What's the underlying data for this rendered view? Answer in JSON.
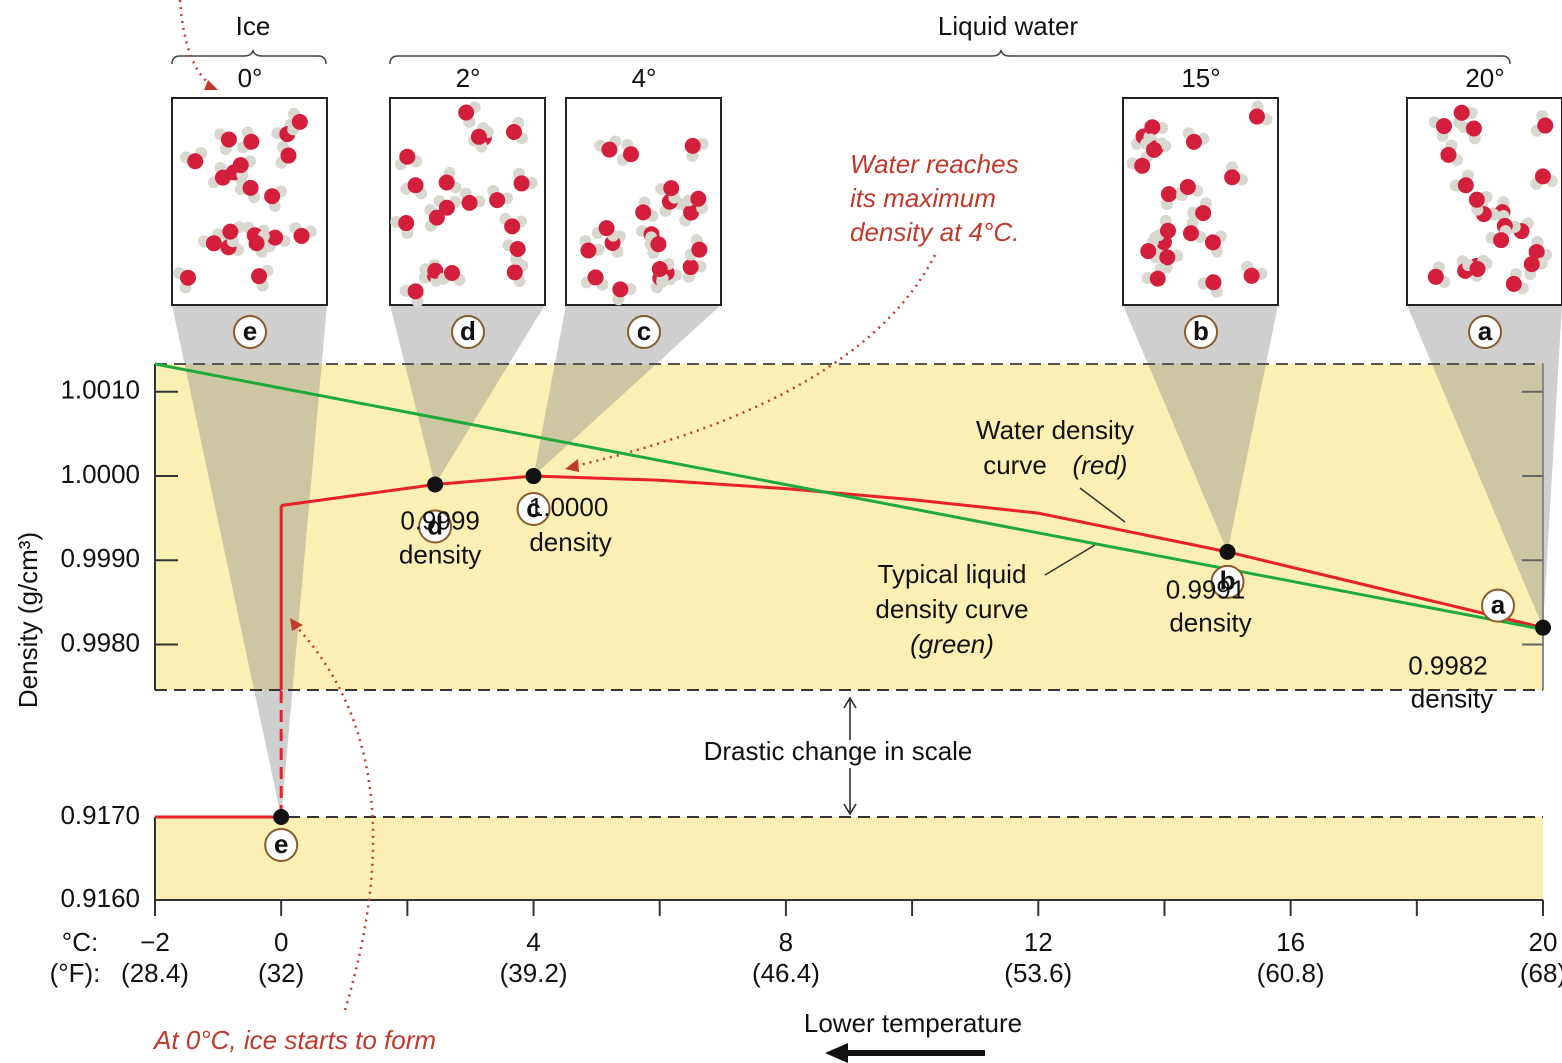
{
  "chart_data": [
    {
      "type": "line",
      "ylabel": "Density (g/cm³)",
      "xlabel": "Lower temperature",
      "x_unit_c": "°C:",
      "x_unit_f": "(°F):",
      "xlim": [
        -2,
        20
      ],
      "xticks": [
        {
          "value": -2,
          "label": "−2"
        },
        0,
        4,
        8,
        12,
        16,
        20
      ],
      "xticks_f": [
        "(28.4)",
        "(32)",
        "(39.2)",
        "(46.4)",
        "(53.6)",
        "(60.8)",
        "(68)"
      ],
      "xminor": [
        2,
        6,
        10,
        14,
        18
      ],
      "ylim": [
        0.99746,
        1.00133
      ],
      "yticks": [
        {
          "value": 1.001,
          "label": "1.0010"
        },
        {
          "value": 1,
          "label": "1.0000"
        },
        {
          "value": 0.999,
          "label": "0.9990"
        },
        {
          "value": 0.998,
          "label": "0.9980"
        }
      ],
      "series": [
        {
          "label_lines": [
            "Water density",
            "curve"
          ],
          "label_note": "(red)",
          "color": "#e8202a",
          "x": [
            0,
            2.44,
            4,
            6,
            8,
            10,
            12,
            15,
            17.5,
            20
          ],
          "values": [
            0.99965,
            0.9999,
            1.0,
            0.99995,
            0.99985,
            0.99972,
            0.99956,
            0.9991,
            0.99865,
            0.9982
          ]
        },
        {
          "label_lines": [
            "Typical liquid",
            "density curve"
          ],
          "label_note": "(green)",
          "color": "#1faa3c",
          "x": [
            -2,
            20
          ],
          "values": [
            1.00133,
            0.99818
          ]
        }
      ],
      "points": {
        "letters": [
          "d",
          "c",
          "b",
          "a"
        ],
        "x": [
          2.44,
          4,
          15,
          20
        ],
        "values": [
          0.9999,
          1.0,
          0.9991,
          0.9982
        ],
        "value_labels": [
          "0.9999",
          "1.0000",
          "0.9991",
          "0.9982"
        ],
        "value_unit": "density"
      },
      "annotation_max": [
        "Water reaches",
        "its maximum",
        "density at 4°C."
      ],
      "annotation_ice": "At 0°C, ice starts to form",
      "gap_label": "Drastic change in scale",
      "groups": [
        "Ice",
        "Liquid water"
      ],
      "boxes": [
        {
          "temp": "0°",
          "letter": "e"
        },
        {
          "temp": "2°",
          "letter": "d"
        },
        {
          "temp": "4°",
          "letter": "c"
        },
        {
          "temp": "15°",
          "letter": "b"
        },
        {
          "temp": "20°",
          "letter": "a"
        }
      ]
    },
    {
      "type": "line",
      "ylim": [
        0.916,
        0.917
      ],
      "yticks": [
        {
          "value": 0.917,
          "label": "0.9170"
        },
        {
          "value": 0.916,
          "label": "0.9160"
        }
      ],
      "series": [
        {
          "color": "#e8202a",
          "x": [
            -2,
            0
          ],
          "values": [
            0.917,
            0.917
          ]
        }
      ],
      "points": {
        "letters": [
          "e"
        ],
        "x": [
          0
        ],
        "values": [
          0.917
        ]
      }
    }
  ]
}
